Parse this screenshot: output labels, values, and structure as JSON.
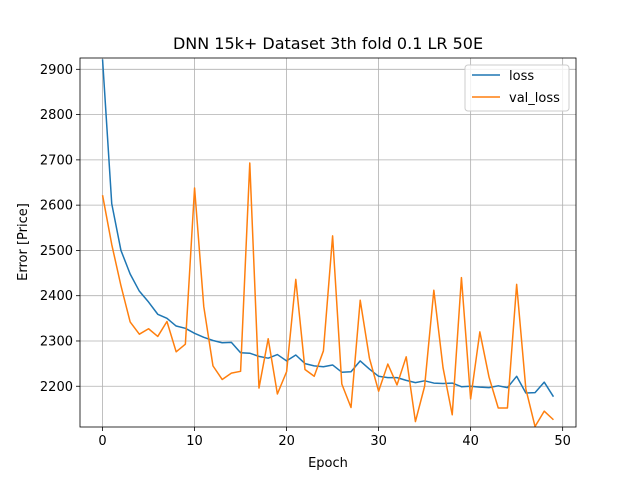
{
  "chart_data": {
    "type": "line",
    "title": "DNN 15k+ Dataset 3th fold 0.1 LR 50E",
    "xlabel": "Epoch",
    "ylabel": "Error [Price]",
    "xlim": [
      -2.45,
      51.45
    ],
    "ylim": [
      2110,
      2925
    ],
    "xticks": [
      0,
      10,
      20,
      30,
      40,
      50
    ],
    "yticks": [
      2200,
      2300,
      2400,
      2500,
      2600,
      2700,
      2800,
      2900
    ],
    "grid": true,
    "legend_position": "top-right",
    "x": [
      0,
      1,
      2,
      3,
      4,
      5,
      6,
      7,
      8,
      9,
      10,
      11,
      12,
      13,
      14,
      15,
      16,
      17,
      18,
      19,
      20,
      21,
      22,
      23,
      24,
      25,
      26,
      27,
      28,
      29,
      30,
      31,
      32,
      33,
      34,
      35,
      36,
      37,
      38,
      39,
      40,
      41,
      42,
      43,
      44,
      45,
      46,
      47,
      48,
      49
    ],
    "series": [
      {
        "name": "loss",
        "color": "#1f77b4",
        "values": [
          2922,
          2603,
          2500,
          2448,
          2410,
          2386,
          2359,
          2350,
          2333,
          2328,
          2317,
          2308,
          2301,
          2296,
          2297,
          2274,
          2273,
          2266,
          2262,
          2270,
          2256,
          2269,
          2250,
          2245,
          2243,
          2247,
          2231,
          2232,
          2256,
          2238,
          2222,
          2219,
          2219,
          2213,
          2208,
          2212,
          2207,
          2206,
          2207,
          2199,
          2200,
          2198,
          2197,
          2201,
          2197,
          2222,
          2185,
          2186,
          2209,
          2177
        ]
      },
      {
        "name": "val_loss",
        "color": "#ff7f0e",
        "values": [
          2622,
          2513,
          2422,
          2342,
          2315,
          2327,
          2310,
          2343,
          2276,
          2293,
          2638,
          2376,
          2245,
          2215,
          2229,
          2233,
          2693,
          2196,
          2305,
          2183,
          2232,
          2436,
          2237,
          2222,
          2278,
          2532,
          2205,
          2153,
          2390,
          2262,
          2189,
          2249,
          2203,
          2265,
          2122,
          2200,
          2412,
          2241,
          2137,
          2440,
          2172,
          2320,
          2220,
          2152,
          2152,
          2425,
          2194,
          2111,
          2145,
          2126
        ]
      }
    ]
  }
}
